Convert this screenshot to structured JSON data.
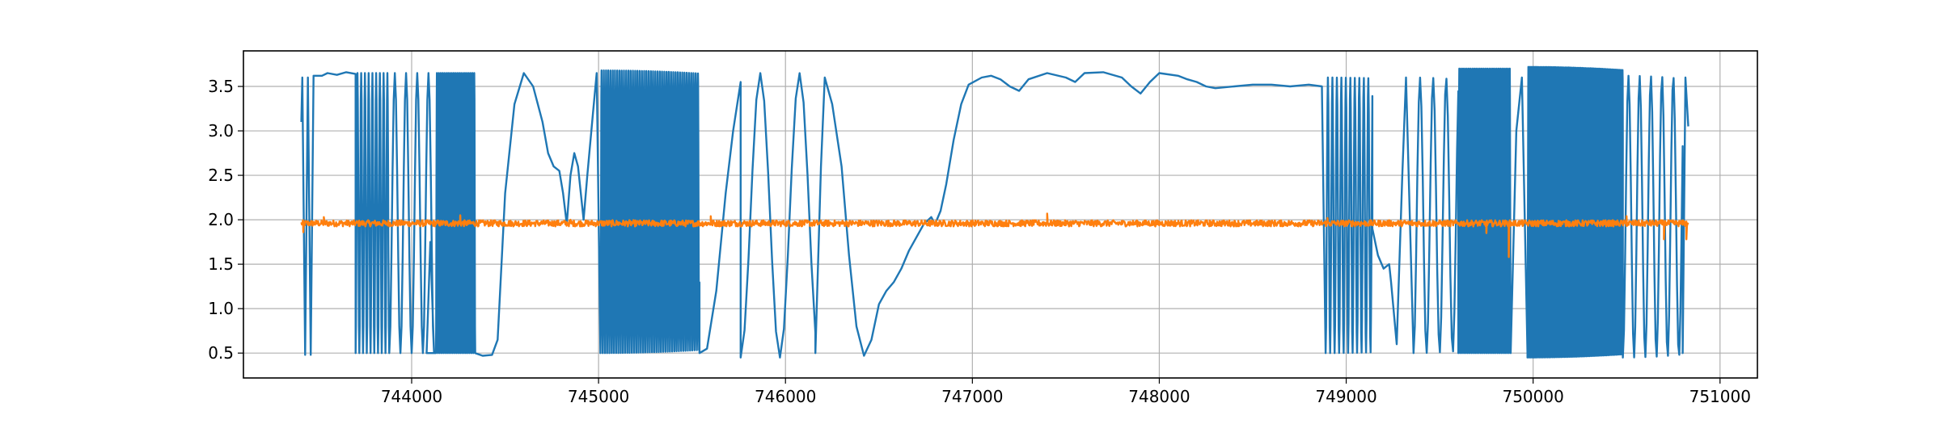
{
  "chart_data": {
    "type": "line",
    "title": "",
    "xlabel": "",
    "ylabel": "",
    "xlim": [
      743100,
      751200
    ],
    "ylim": [
      0.22,
      3.9
    ],
    "grid": true,
    "xticks": [
      744000,
      745000,
      746000,
      747000,
      748000,
      749000,
      750000,
      751000
    ],
    "xtick_labels": [
      "744000",
      "745000",
      "746000",
      "747000",
      "748000",
      "749000",
      "750000",
      "751000"
    ],
    "yticks": [
      0.5,
      1.0,
      1.5,
      2.0,
      2.5,
      3.0,
      3.5
    ],
    "ytick_labels": [
      "0.5",
      "1.0",
      "1.5",
      "2.0",
      "2.5",
      "3.0",
      "3.5"
    ],
    "series": [
      {
        "color": "#1f77b4",
        "segments": [
          {
            "kind": "points",
            "points": [
              [
                743410,
                3.1
              ],
              [
                743415,
                3.6
              ],
              [
                743430,
                0.48
              ],
              [
                743445,
                3.6
              ],
              [
                743460,
                0.48
              ],
              [
                743475,
                3.62
              ],
              [
                743520,
                3.62
              ],
              [
                743550,
                3.65
              ],
              [
                743600,
                3.63
              ],
              [
                743650,
                3.66
              ],
              [
                743700,
                3.64
              ]
            ]
          },
          {
            "kind": "osc",
            "x0": 743700,
            "x1": 743880,
            "period": 20,
            "lo": 0.5,
            "hi": 3.65
          },
          {
            "kind": "osc",
            "x0": 743880,
            "x1": 744120,
            "period": 60,
            "lo": 0.5,
            "hi": 3.65
          },
          {
            "kind": "points",
            "points": [
              [
                744080,
                0.5
              ],
              [
                744100,
                1.75
              ],
              [
                744120,
                0.5
              ]
            ]
          },
          {
            "kind": "osc",
            "x0": 744130,
            "x1": 744340,
            "period": 10,
            "lo": 0.5,
            "hi": 3.65
          },
          {
            "kind": "points",
            "points": [
              [
                744340,
                0.5
              ],
              [
                744380,
                0.47
              ],
              [
                744430,
                0.48
              ],
              [
                744460,
                0.65
              ],
              [
                744500,
                2.3
              ],
              [
                744550,
                3.3
              ],
              [
                744600,
                3.65
              ],
              [
                744650,
                3.5
              ],
              [
                744700,
                3.1
              ],
              [
                744730,
                2.75
              ],
              [
                744760,
                2.6
              ],
              [
                744790,
                2.55
              ],
              [
                744810,
                2.3
              ],
              [
                744830,
                1.95
              ],
              [
                744850,
                2.5
              ],
              [
                744870,
                2.75
              ],
              [
                744890,
                2.6
              ],
              [
                744920,
                2.0
              ],
              [
                744940,
                2.5
              ],
              [
                744970,
                3.2
              ],
              [
                744990,
                3.65
              ],
              [
                745010,
                0.5
              ]
            ]
          },
          {
            "kind": "osc",
            "x0": 745010,
            "x1": 745540,
            "period": 12,
            "lo": 0.5,
            "hi": 3.68
          },
          {
            "kind": "points",
            "points": [
              [
                745540,
                0.5
              ],
              [
                745580,
                0.55
              ],
              [
                745630,
                1.2
              ],
              [
                745680,
                2.3
              ],
              [
                745720,
                3.0
              ],
              [
                745760,
                3.55
              ]
            ]
          },
          {
            "kind": "osc",
            "x0": 745760,
            "x1": 746160,
            "period": 210,
            "lo": 0.45,
            "hi": 3.65
          },
          {
            "kind": "points",
            "points": [
              [
                746160,
                0.5
              ],
              [
                746190,
                2.6
              ],
              [
                746210,
                3.6
              ],
              [
                746250,
                3.3
              ],
              [
                746300,
                2.6
              ],
              [
                746340,
                1.6
              ],
              [
                746380,
                0.8
              ],
              [
                746420,
                0.47
              ],
              [
                746460,
                0.65
              ],
              [
                746500,
                1.05
              ],
              [
                746540,
                1.2
              ],
              [
                746580,
                1.3
              ],
              [
                746620,
                1.45
              ],
              [
                746660,
                1.65
              ],
              [
                746700,
                1.8
              ],
              [
                746740,
                1.95
              ],
              [
                746780,
                2.03
              ],
              [
                746800,
                1.95
              ],
              [
                746830,
                2.1
              ],
              [
                746860,
                2.4
              ],
              [
                746900,
                2.9
              ],
              [
                746940,
                3.3
              ],
              [
                746980,
                3.52
              ],
              [
                747050,
                3.6
              ],
              [
                747100,
                3.62
              ],
              [
                747150,
                3.58
              ],
              [
                747200,
                3.5
              ],
              [
                747250,
                3.45
              ],
              [
                747300,
                3.58
              ],
              [
                747400,
                3.65
              ],
              [
                747500,
                3.6
              ],
              [
                747550,
                3.55
              ],
              [
                747600,
                3.65
              ],
              [
                747700,
                3.66
              ],
              [
                747800,
                3.6
              ],
              [
                747850,
                3.5
              ],
              [
                747900,
                3.42
              ],
              [
                747950,
                3.55
              ],
              [
                748000,
                3.65
              ],
              [
                748100,
                3.62
              ],
              [
                748150,
                3.58
              ],
              [
                748200,
                3.55
              ],
              [
                748250,
                3.5
              ],
              [
                748300,
                3.48
              ],
              [
                748400,
                3.5
              ],
              [
                748500,
                3.52
              ],
              [
                748600,
                3.52
              ],
              [
                748700,
                3.5
              ],
              [
                748800,
                3.52
              ],
              [
                748870,
                3.5
              ],
              [
                748890,
                0.5
              ]
            ]
          },
          {
            "kind": "osc",
            "x0": 748890,
            "x1": 749140,
            "period": 24,
            "lo": 0.5,
            "hi": 3.6
          },
          {
            "kind": "points",
            "points": [
              [
                749140,
                1.9
              ],
              [
                749170,
                1.6
              ],
              [
                749200,
                1.45
              ],
              [
                749230,
                1.5
              ],
              [
                749240,
                1.3
              ],
              [
                749270,
                0.6
              ],
              [
                749300,
                2.5
              ],
              [
                749320,
                3.6
              ],
              [
                749360,
                0.5
              ]
            ]
          },
          {
            "kind": "osc",
            "x0": 749360,
            "x1": 749600,
            "period": 70,
            "lo": 0.5,
            "hi": 3.6
          },
          {
            "kind": "osc",
            "x0": 749600,
            "x1": 749880,
            "period": 10,
            "lo": 0.5,
            "hi": 3.7
          },
          {
            "kind": "points",
            "points": [
              [
                749880,
                0.5
              ],
              [
                749910,
                3.0
              ],
              [
                749940,
                3.6
              ],
              [
                749970,
                0.5
              ]
            ]
          },
          {
            "kind": "osc",
            "x0": 749970,
            "x1": 750480,
            "period": 9,
            "lo": 0.45,
            "hi": 3.72
          },
          {
            "kind": "osc",
            "x0": 750480,
            "x1": 750800,
            "period": 60,
            "lo": 0.45,
            "hi": 3.62
          },
          {
            "kind": "points",
            "points": [
              [
                750800,
                0.5
              ],
              [
                750815,
                3.6
              ],
              [
                750830,
                3.05
              ]
            ]
          }
        ]
      },
      {
        "color": "#ff7f0e",
        "segments": [
          {
            "kind": "noise",
            "x0": 743410,
            "x1": 750830,
            "center": 1.96,
            "amp": 0.035,
            "step": 3
          }
        ],
        "spikes": [
          [
            743420,
            1.86
          ],
          [
            743530,
            2.03
          ],
          [
            744260,
            2.05
          ],
          [
            744850,
            2.0
          ],
          [
            745600,
            2.04
          ],
          [
            747400,
            2.07
          ],
          [
            748900,
            2.02
          ],
          [
            749750,
            1.85
          ],
          [
            749870,
            1.58
          ],
          [
            749900,
            1.96
          ],
          [
            750500,
            2.04
          ],
          [
            750700,
            1.78
          ],
          [
            750820,
            1.78
          ]
        ]
      }
    ]
  }
}
